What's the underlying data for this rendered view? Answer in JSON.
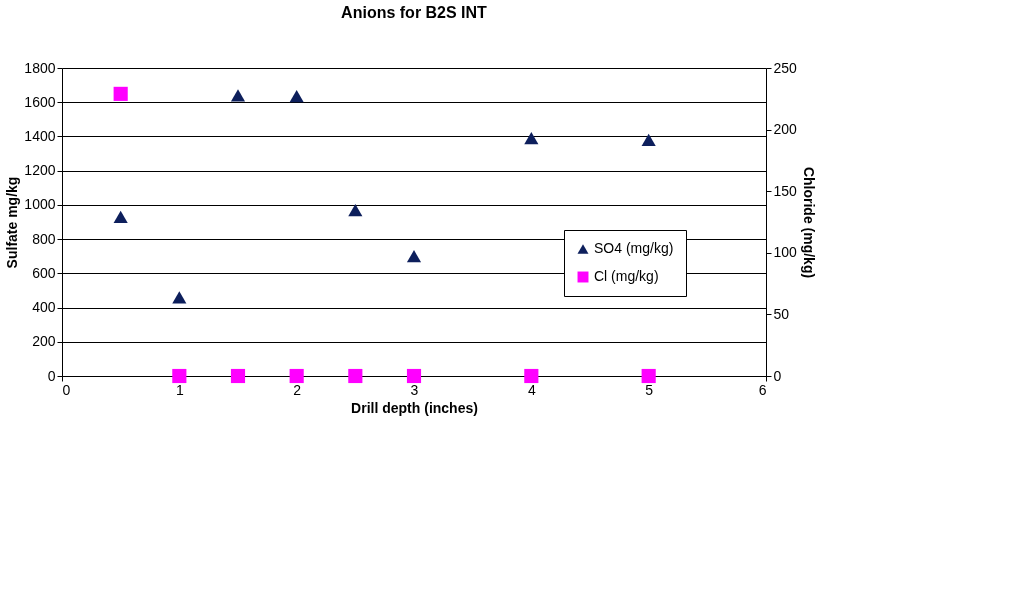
{
  "chart_data": {
    "type": "scatter",
    "title": "Anions for B2S INT",
    "xlabel": "Drill depth (inches)",
    "ylabel": "Sulfate mg/kg",
    "y2label": "Chloride (mg/kg)",
    "x": [
      0.5,
      1,
      1.5,
      2,
      2.5,
      3,
      4,
      5
    ],
    "series": [
      {
        "name": "SO4 (mg/kg)",
        "color": "#0d1f5c",
        "marker": "triangle",
        "values": [
          930,
          460,
          1640,
          1635,
          970,
          700,
          1390,
          1380
        ]
      },
      {
        "name": "Cl (mg/kg)",
        "color": "#ff00ff",
        "marker": "square",
        "axis": "y2",
        "values": [
          229,
          0,
          0,
          0,
          0,
          0,
          0,
          0
        ]
      }
    ],
    "xlim": [
      0,
      6
    ],
    "xticks": [
      0,
      1,
      2,
      3,
      4,
      5,
      6
    ],
    "ylim": [
      0,
      1800
    ],
    "yticks": [
      0,
      200,
      400,
      600,
      800,
      1000,
      1200,
      1400,
      1600,
      1800
    ],
    "y2lim": [
      0,
      250
    ],
    "y2ticks": [
      0,
      50,
      100,
      150,
      200,
      250
    ],
    "grid": "y",
    "legend": "bottom right"
  }
}
